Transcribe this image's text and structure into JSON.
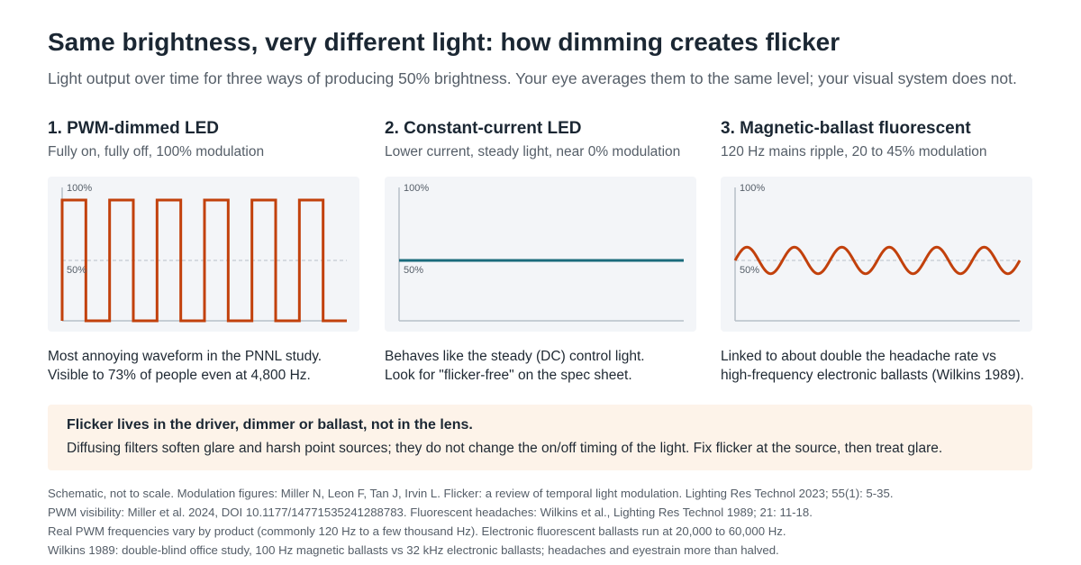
{
  "header": {
    "title": "Same brightness, very different light: how dimming creates flicker",
    "subtitle": "Light output over time for three ways of producing 50% brightness. Your eye averages them to the same level; your visual system does not."
  },
  "colors": {
    "pwm": "#c2410c",
    "constant": "#1a6b7c",
    "fluorescent": "#c2410c",
    "axis": "#b8c0c8",
    "midline": "#b8c0c8",
    "plot_bg": "#f3f5f8",
    "callout_bg": "#fdf3e9"
  },
  "panels": [
    {
      "heading": "1. PWM-dimmed LED",
      "subheading": "Fully on, fully off, 100% modulation",
      "note_lines": [
        "Most annoying waveform in the PNNL study.",
        "Visible to 73% of people even at 4,800 Hz."
      ]
    },
    {
      "heading": "2. Constant-current LED",
      "subheading": "Lower current, steady light, near 0% modulation",
      "note_lines": [
        "Behaves like the steady (DC) control light.",
        "Look for \"flicker-free\" on the spec sheet."
      ]
    },
    {
      "heading": "3. Magnetic-ballast fluorescent",
      "subheading": "120 Hz mains ripple, 20 to 45% modulation",
      "note_lines": [
        "Linked to about double the headache rate vs",
        "high-frequency electronic ballasts (Wilkins 1989)."
      ]
    }
  ],
  "chart_data": [
    {
      "type": "line",
      "name": "PWM-dimmed LED",
      "waveform": "square",
      "cycles": 6,
      "duty_cycle": 0.5,
      "y_min": 0,
      "y_max": 100,
      "mean": 50,
      "modulation_percent": 100,
      "ytick_labels": [
        "100%",
        "50%"
      ],
      "ytick_values": [
        100,
        50
      ]
    },
    {
      "type": "line",
      "name": "Constant-current LED",
      "waveform": "constant",
      "value": 50,
      "modulation_percent": 0,
      "ytick_labels": [
        "100%",
        "50%"
      ],
      "ytick_values": [
        100,
        50
      ]
    },
    {
      "type": "line",
      "name": "Magnetic-ballast fluorescent",
      "waveform": "sine",
      "cycles": 6,
      "mean": 50,
      "amplitude": 11,
      "ytick_labels": [
        "100%",
        "50%"
      ],
      "ytick_values": [
        100,
        50
      ]
    }
  ],
  "callout": {
    "title": "Flicker lives in the driver, dimmer or ballast, not in the lens.",
    "text": "Diffusing filters soften glare and harsh point sources; they do not change the on/off timing of the light. Fix flicker at the source, then treat glare."
  },
  "sources": [
    "Schematic, not to scale. Modulation figures: Miller N, Leon F, Tan J, Irvin L. Flicker: a review of temporal light modulation. Lighting Res Technol 2023; 55(1): 5-35.",
    "PWM visibility: Miller et al. 2024, DOI 10.1177/14771535241288783. Fluorescent headaches: Wilkins et al., Lighting Res Technol 1989; 21: 11-18.",
    "Real PWM frequencies vary by product (commonly 120 Hz to a few thousand Hz). Electronic fluorescent ballasts run at 20,000 to 60,000 Hz.",
    "Wilkins 1989: double-blind office study, 100 Hz magnetic ballasts vs 32 kHz electronic ballasts; headaches and eyestrain more than halved."
  ]
}
